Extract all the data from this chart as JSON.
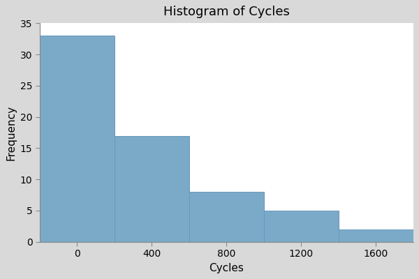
{
  "title": "Histogram of Cycles",
  "xlabel": "Cycles",
  "ylabel": "Frequency",
  "bar_left_edges": [
    -200,
    200,
    600,
    1000,
    1400
  ],
  "bar_widths": [
    400,
    400,
    400,
    400,
    400
  ],
  "bar_heights": [
    33,
    17,
    8,
    5,
    2
  ],
  "bar_color": "#7aaac8",
  "bar_edgecolor": "#6699bb",
  "ylim": [
    0,
    35
  ],
  "yticks": [
    0,
    5,
    10,
    15,
    20,
    25,
    30,
    35
  ],
  "xticks": [
    0,
    400,
    800,
    1200,
    1600
  ],
  "xlim": [
    -200,
    1800
  ],
  "background_color": "#D9D9D9",
  "plot_bg_color": "#FFFFFF",
  "title_fontsize": 13,
  "label_fontsize": 11,
  "tick_fontsize": 10
}
